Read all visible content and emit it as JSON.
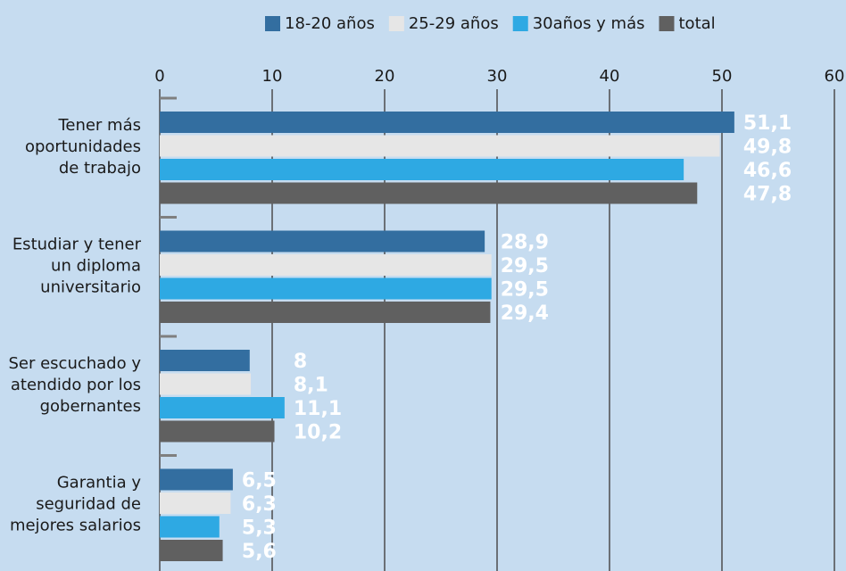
{
  "chart_data": {
    "type": "hbar",
    "categories": [
      [
        "Tener más",
        "oportunidades",
        "de trabajo"
      ],
      [
        "Estudiar y tener",
        "un diploma",
        "universitario"
      ],
      [
        "Ser escuchado y",
        "atendido por los",
        "gobernantes"
      ],
      [
        "Garantia y",
        "seguridad de",
        "mejores salarios"
      ]
    ],
    "series": [
      {
        "name": "18-20 años",
        "color": "#336ea0",
        "values": [
          51.1,
          28.9,
          8,
          6.5
        ],
        "value_labels": [
          "51,1",
          "28,9",
          "8",
          "6,5"
        ]
      },
      {
        "name": "25-29 años",
        "color": "#e6e6e6",
        "values": [
          49.8,
          29.5,
          8.1,
          6.3
        ],
        "value_labels": [
          "49,8",
          "29,5",
          "8,1",
          "6,3"
        ]
      },
      {
        "name": "30años y más",
        "color": "#2ea9e3",
        "values": [
          46.6,
          29.5,
          11.1,
          5.3
        ],
        "value_labels": [
          "46,6",
          "29,5",
          "11,1",
          "5,3"
        ]
      },
      {
        "name": "total",
        "color": "#606060",
        "values": [
          47.8,
          29.4,
          10.2,
          5.6
        ],
        "value_labels": [
          "47,8",
          "29,4",
          "10,2",
          "5,6"
        ]
      }
    ],
    "xlim": [
      0,
      60
    ],
    "xticks": [
      0,
      10,
      20,
      30,
      40,
      50,
      60
    ],
    "grid": true,
    "legend": "top"
  }
}
